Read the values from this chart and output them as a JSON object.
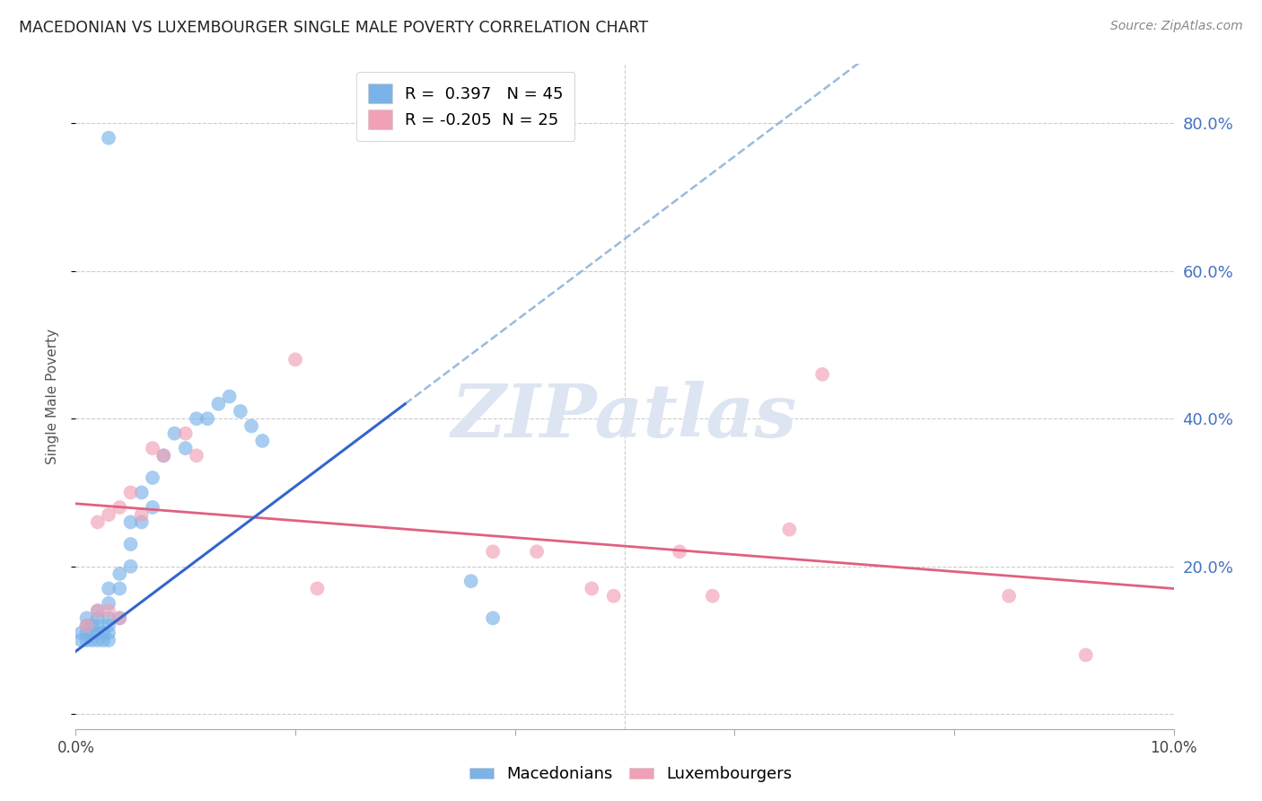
{
  "title": "MACEDONIAN VS LUXEMBOURGER SINGLE MALE POVERTY CORRELATION CHART",
  "source": "Source: ZipAtlas.com",
  "ylabel": "Single Male Poverty",
  "xlim": [
    0.0,
    0.1
  ],
  "ylim": [
    -0.02,
    0.88
  ],
  "yticks": [
    0.0,
    0.2,
    0.4,
    0.6,
    0.8
  ],
  "ytick_labels": [
    "",
    "20.0%",
    "40.0%",
    "60.0%",
    "80.0%"
  ],
  "xticks": [
    0.0,
    0.02,
    0.04,
    0.06,
    0.08,
    0.1
  ],
  "xtick_labels": [
    "0.0%",
    "",
    "",
    "",
    "",
    "10.0%"
  ],
  "macedonians_x": [
    0.0005,
    0.0005,
    0.001,
    0.001,
    0.001,
    0.001,
    0.0015,
    0.0015,
    0.0015,
    0.002,
    0.002,
    0.002,
    0.002,
    0.002,
    0.0025,
    0.0025,
    0.003,
    0.003,
    0.003,
    0.003,
    0.003,
    0.003,
    0.004,
    0.004,
    0.004,
    0.005,
    0.005,
    0.005,
    0.006,
    0.006,
    0.007,
    0.007,
    0.008,
    0.009,
    0.01,
    0.011,
    0.012,
    0.013,
    0.014,
    0.015,
    0.016,
    0.017,
    0.003,
    0.036,
    0.038
  ],
  "macedonians_y": [
    0.1,
    0.11,
    0.1,
    0.11,
    0.12,
    0.13,
    0.1,
    0.11,
    0.12,
    0.1,
    0.11,
    0.12,
    0.13,
    0.14,
    0.1,
    0.11,
    0.1,
    0.11,
    0.12,
    0.13,
    0.15,
    0.17,
    0.13,
    0.17,
    0.19,
    0.2,
    0.23,
    0.26,
    0.26,
    0.3,
    0.28,
    0.32,
    0.35,
    0.38,
    0.36,
    0.4,
    0.4,
    0.42,
    0.43,
    0.41,
    0.39,
    0.37,
    0.78,
    0.18,
    0.13
  ],
  "luxembourgers_x": [
    0.001,
    0.002,
    0.002,
    0.003,
    0.003,
    0.004,
    0.004,
    0.005,
    0.006,
    0.007,
    0.008,
    0.01,
    0.011,
    0.02,
    0.022,
    0.038,
    0.042,
    0.047,
    0.049,
    0.055,
    0.058,
    0.065,
    0.068,
    0.085,
    0.092
  ],
  "luxembourgers_y": [
    0.12,
    0.14,
    0.26,
    0.27,
    0.14,
    0.28,
    0.13,
    0.3,
    0.27,
    0.36,
    0.35,
    0.38,
    0.35,
    0.48,
    0.17,
    0.22,
    0.22,
    0.17,
    0.16,
    0.22,
    0.16,
    0.25,
    0.46,
    0.16,
    0.08
  ],
  "mac_R": 0.397,
  "mac_N": 45,
  "lux_R": -0.205,
  "lux_N": 25,
  "blue_scatter_color": "#7ab3e8",
  "pink_scatter_color": "#f2a0b5",
  "blue_line_color": "#3366cc",
  "pink_line_color": "#e06080",
  "blue_dash_color": "#99bbdd",
  "grid_color": "#cccccc",
  "title_color": "#222222",
  "axis_label_color": "#555555",
  "right_axis_color": "#4472c4",
  "watermark_color": "#dde5f2",
  "background_color": "#ffffff",
  "mac_line_x0": 0.0,
  "mac_line_y0": 0.085,
  "mac_line_x1": 0.03,
  "mac_line_y1": 0.42,
  "lux_line_x0": 0.0,
  "lux_line_y0": 0.285,
  "lux_line_x1": 0.1,
  "lux_line_y1": 0.17
}
